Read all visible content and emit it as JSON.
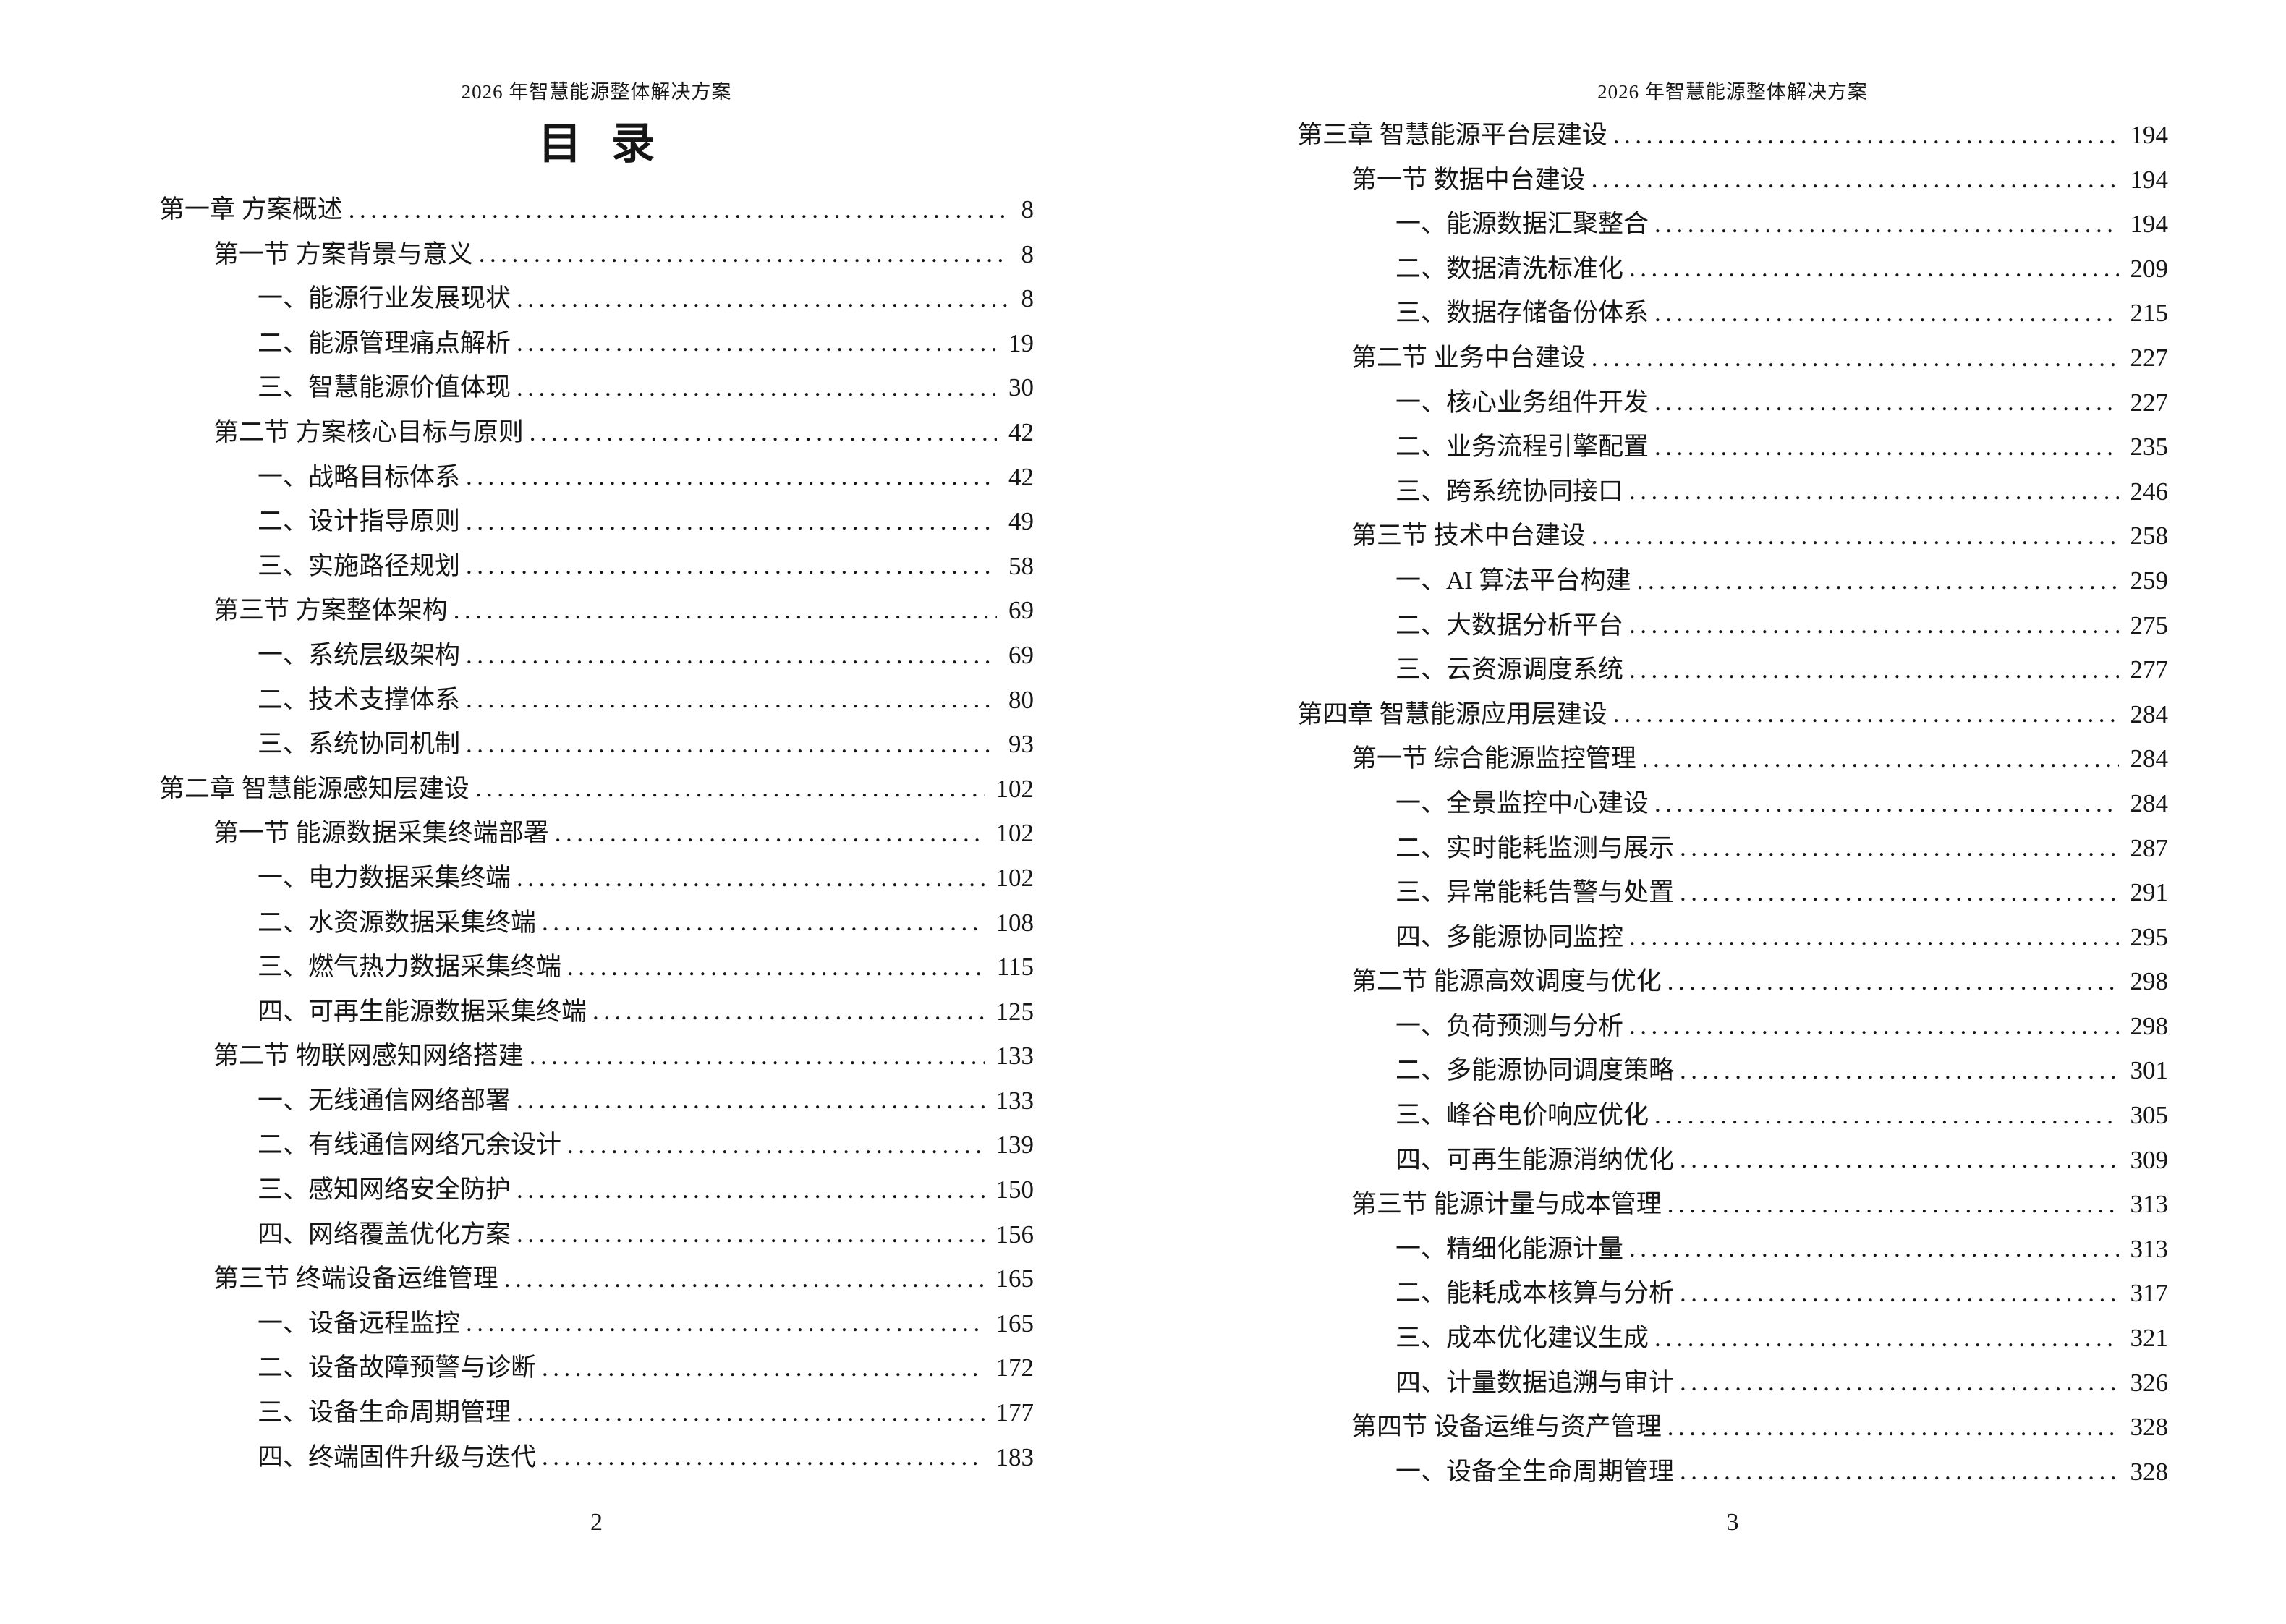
{
  "colors": {
    "background": "#ffffff",
    "text": "#161616"
  },
  "left_page": {
    "header": "2026 年智慧能源整体解决方案",
    "toc_title": "目 录",
    "footer_page_number": "2",
    "entries": [
      {
        "level": 1,
        "text": "第一章 方案概述",
        "page": "8"
      },
      {
        "level": 2,
        "text": "第一节 方案背景与意义",
        "page": "8"
      },
      {
        "level": 3,
        "text": "一、能源行业发展现状",
        "page": "8"
      },
      {
        "level": 3,
        "text": "二、能源管理痛点解析",
        "page": "19"
      },
      {
        "level": 3,
        "text": "三、智慧能源价值体现",
        "page": "30"
      },
      {
        "level": 2,
        "text": "第二节 方案核心目标与原则",
        "page": "42"
      },
      {
        "level": 3,
        "text": "一、战略目标体系",
        "page": "42"
      },
      {
        "level": 3,
        "text": "二、设计指导原则",
        "page": "49"
      },
      {
        "level": 3,
        "text": "三、实施路径规划",
        "page": "58"
      },
      {
        "level": 2,
        "text": "第三节 方案整体架构",
        "page": "69"
      },
      {
        "level": 3,
        "text": "一、系统层级架构",
        "page": "69"
      },
      {
        "level": 3,
        "text": "二、技术支撑体系",
        "page": "80"
      },
      {
        "level": 3,
        "text": "三、系统协同机制",
        "page": "93"
      },
      {
        "level": 1,
        "text": "第二章 智慧能源感知层建设",
        "page": "102"
      },
      {
        "level": 2,
        "text": "第一节 能源数据采集终端部署",
        "page": "102"
      },
      {
        "level": 3,
        "text": "一、电力数据采集终端",
        "page": "102"
      },
      {
        "level": 3,
        "text": "二、水资源数据采集终端",
        "page": "108"
      },
      {
        "level": 3,
        "text": "三、燃气热力数据采集终端",
        "page": "115"
      },
      {
        "level": 3,
        "text": "四、可再生能源数据采集终端",
        "page": "125"
      },
      {
        "level": 2,
        "text": "第二节 物联网感知网络搭建",
        "page": "133"
      },
      {
        "level": 3,
        "text": "一、无线通信网络部署",
        "page": "133"
      },
      {
        "level": 3,
        "text": "二、有线通信网络冗余设计",
        "page": "139"
      },
      {
        "level": 3,
        "text": "三、感知网络安全防护",
        "page": "150"
      },
      {
        "level": 3,
        "text": "四、网络覆盖优化方案",
        "page": "156"
      },
      {
        "level": 2,
        "text": "第三节 终端设备运维管理",
        "page": "165"
      },
      {
        "level": 3,
        "text": "一、设备远程监控",
        "page": "165"
      },
      {
        "level": 3,
        "text": "二、设备故障预警与诊断",
        "page": "172"
      },
      {
        "level": 3,
        "text": "三、设备生命周期管理",
        "page": "177"
      },
      {
        "level": 3,
        "text": "四、终端固件升级与迭代",
        "page": "183"
      }
    ]
  },
  "right_page": {
    "header": "2026 年智慧能源整体解决方案",
    "footer_page_number": "3",
    "entries": [
      {
        "level": 1,
        "text": "第三章 智慧能源平台层建设",
        "page": "194"
      },
      {
        "level": 2,
        "text": "第一节 数据中台建设",
        "page": "194"
      },
      {
        "level": 3,
        "text": "一、能源数据汇聚整合",
        "page": "194"
      },
      {
        "level": 3,
        "text": "二、数据清洗标准化",
        "page": "209"
      },
      {
        "level": 3,
        "text": "三、数据存储备份体系",
        "page": "215"
      },
      {
        "level": 2,
        "text": "第二节 业务中台建设",
        "page": "227"
      },
      {
        "level": 3,
        "text": "一、核心业务组件开发",
        "page": "227"
      },
      {
        "level": 3,
        "text": "二、业务流程引擎配置",
        "page": "235"
      },
      {
        "level": 3,
        "text": "三、跨系统协同接口",
        "page": "246"
      },
      {
        "level": 2,
        "text": "第三节 技术中台建设",
        "page": "258"
      },
      {
        "level": 3,
        "text": "一、AI 算法平台构建",
        "page": "259"
      },
      {
        "level": 3,
        "text": "二、大数据分析平台",
        "page": "275"
      },
      {
        "level": 3,
        "text": "三、云资源调度系统",
        "page": "277"
      },
      {
        "level": 1,
        "text": "第四章 智慧能源应用层建设",
        "page": "284"
      },
      {
        "level": 2,
        "text": "第一节 综合能源监控管理",
        "page": "284"
      },
      {
        "level": 3,
        "text": "一、全景监控中心建设",
        "page": "284"
      },
      {
        "level": 3,
        "text": "二、实时能耗监测与展示",
        "page": "287"
      },
      {
        "level": 3,
        "text": "三、异常能耗告警与处置",
        "page": "291"
      },
      {
        "level": 3,
        "text": "四、多能源协同监控",
        "page": "295"
      },
      {
        "level": 2,
        "text": "第二节 能源高效调度与优化",
        "page": "298"
      },
      {
        "level": 3,
        "text": "一、负荷预测与分析",
        "page": "298"
      },
      {
        "level": 3,
        "text": "二、多能源协同调度策略",
        "page": "301"
      },
      {
        "level": 3,
        "text": "三、峰谷电价响应优化",
        "page": "305"
      },
      {
        "level": 3,
        "text": "四、可再生能源消纳优化",
        "page": "309"
      },
      {
        "level": 2,
        "text": "第三节 能源计量与成本管理",
        "page": "313"
      },
      {
        "level": 3,
        "text": "一、精细化能源计量",
        "page": "313"
      },
      {
        "level": 3,
        "text": "二、能耗成本核算与分析",
        "page": "317"
      },
      {
        "level": 3,
        "text": "三、成本优化建议生成",
        "page": "321"
      },
      {
        "level": 3,
        "text": "四、计量数据追溯与审计",
        "page": "326"
      },
      {
        "level": 2,
        "text": "第四节 设备运维与资产管理",
        "page": "328"
      },
      {
        "level": 3,
        "text": "一、设备全生命周期管理",
        "page": "328"
      }
    ]
  }
}
